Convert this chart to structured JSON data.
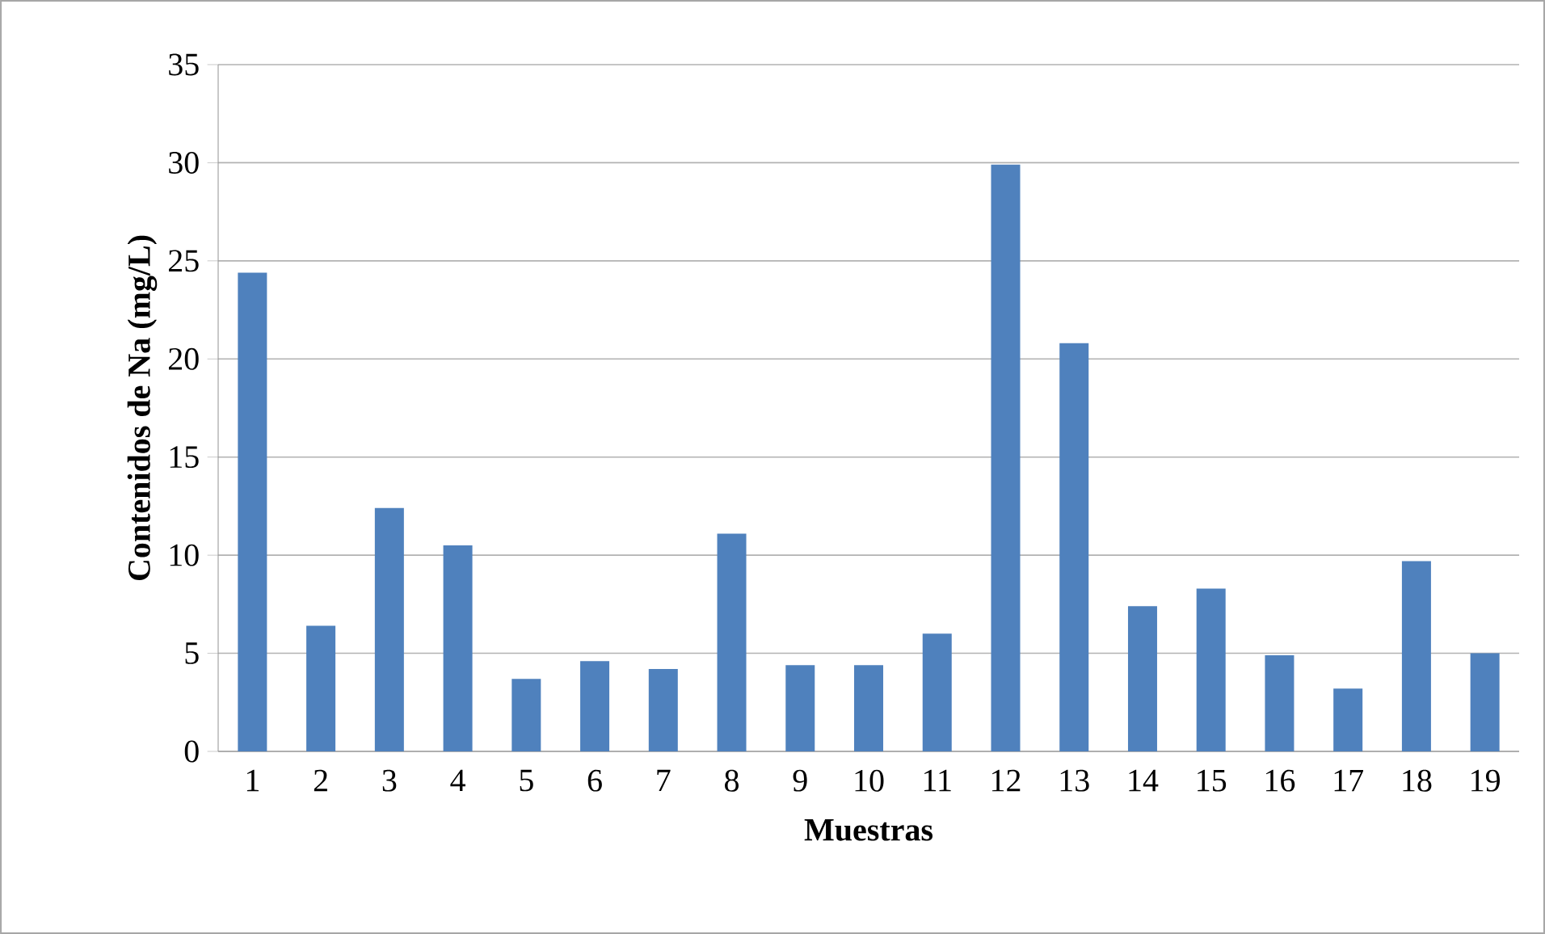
{
  "chart_data": {
    "type": "bar",
    "xlabel": "Muestras",
    "ylabel": "Contenidos de Na (mg/L)",
    "categories": [
      "1",
      "2",
      "3",
      "4",
      "5",
      "6",
      "7",
      "8",
      "9",
      "10",
      "11",
      "12",
      "13",
      "14",
      "15",
      "16",
      "17",
      "18",
      "19"
    ],
    "values": [
      24.4,
      6.4,
      12.4,
      10.5,
      3.7,
      4.6,
      4.2,
      11.1,
      4.4,
      4.4,
      6.0,
      29.9,
      20.8,
      7.4,
      8.3,
      4.9,
      3.2,
      9.7,
      5.0
    ],
    "color": "#4f81bd",
    "ylim": [
      0,
      35
    ],
    "yticks": [
      0,
      5,
      10,
      15,
      20,
      25,
      30,
      35
    ],
    "grid": "y"
  }
}
